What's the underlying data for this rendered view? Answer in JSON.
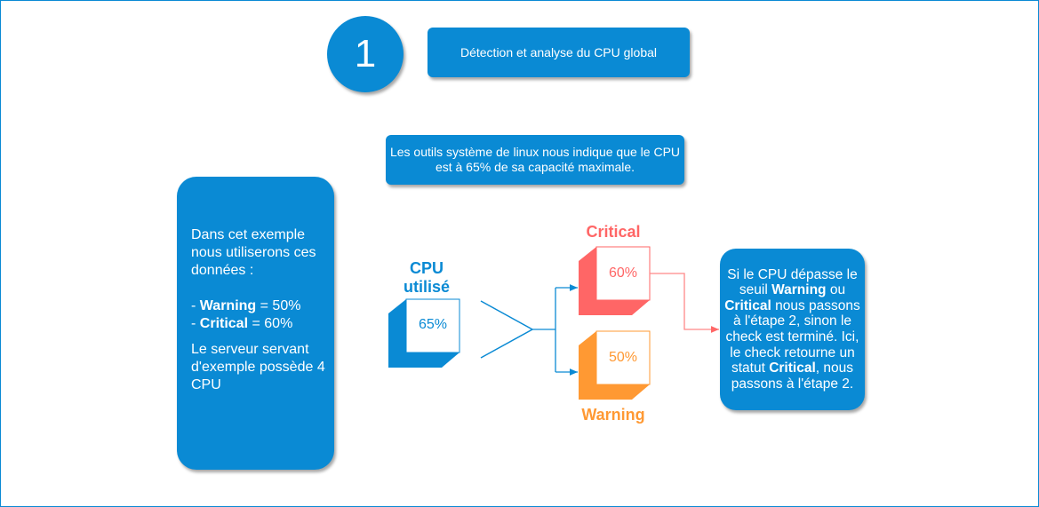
{
  "step_number": "1",
  "title": "Détection et analyse du CPU global",
  "info": "Les outils système de linux nous indique que le CPU est à 65% de sa capacité maximale.",
  "left_box": {
    "intro": "Dans cet exemple nous utiliserons ces données :",
    "warning_label": "Warning",
    "warning_value": " = 50%",
    "critical_label": "Critical",
    "critical_value": " = 60%",
    "dash": "- ",
    "server": "Le serveur servant d'exemple possède 4 CPU"
  },
  "cpu": {
    "label": "CPU utilisé",
    "value": "65%",
    "color": "#0a8ad4"
  },
  "critical": {
    "label": "Critical",
    "value": "60%",
    "color": "#ff6666"
  },
  "warning": {
    "label": "Warning",
    "value": "50%",
    "color": "#ff9933"
  },
  "right_box": {
    "p1": "Si le CPU dépasse le seuil ",
    "b1": "Warning",
    "p2": " ou ",
    "b2": "Critical",
    "p3": " nous passons à l'étape 2, sinon le check est terminé. Ici, le check retourne un statut ",
    "b3": "Critical",
    "p4": ", nous passons à l'étape 2."
  }
}
